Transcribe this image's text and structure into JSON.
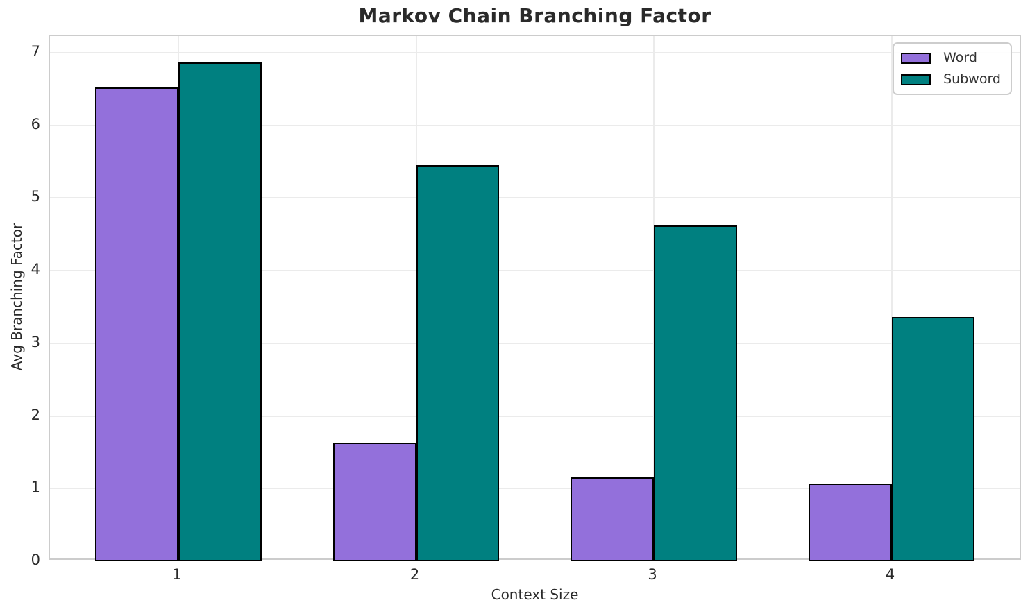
{
  "chart_data": {
    "type": "bar",
    "title": "Markov Chain Branching Factor",
    "xlabel": "Context Size",
    "ylabel": "Avg Branching Factor",
    "categories": [
      "1",
      "2",
      "3",
      "4"
    ],
    "series": [
      {
        "name": "Word",
        "color": "#9370DB",
        "values": [
          6.52,
          1.63,
          1.16,
          1.07
        ]
      },
      {
        "name": "Subword",
        "color": "#008080",
        "values": [
          6.87,
          5.45,
          4.62,
          3.36
        ]
      }
    ],
    "bar_width": 0.35,
    "bar_edge_color": "#000000",
    "xlim": [
      0.46,
      4.55
    ],
    "ylim": [
      0,
      7.23
    ],
    "yticks": [
      0,
      1,
      2,
      3,
      4,
      5,
      6,
      7
    ],
    "grid": true,
    "legend_position": "upper-right"
  },
  "styles": {
    "grid_color": "#ebebeb",
    "spine_color": "#cccccc",
    "text_color": "#2a2a2a",
    "background": "#ffffff"
  }
}
